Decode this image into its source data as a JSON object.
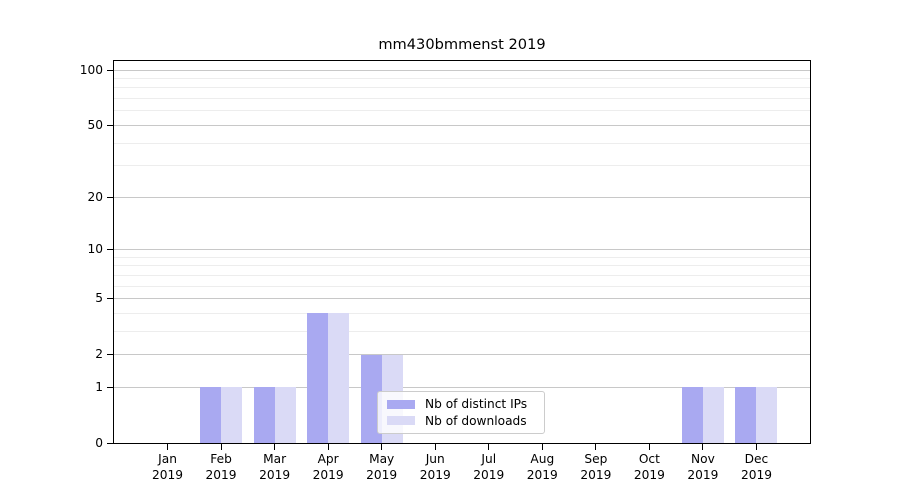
{
  "title": "mm430bmmenst 2019",
  "chart_data": {
    "type": "bar",
    "title": "mm430bmmenst 2019",
    "categories": [
      "Jan",
      "Feb",
      "Mar",
      "Apr",
      "May",
      "Jun",
      "Jul",
      "Aug",
      "Sep",
      "Oct",
      "Nov",
      "Dec"
    ],
    "x_tick_year": "2019",
    "series": [
      {
        "name": "Nb of distinct IPs",
        "color": "#a9a9f1",
        "values": [
          0,
          1,
          1,
          4,
          2,
          0,
          0,
          0,
          0,
          0,
          1,
          1
        ]
      },
      {
        "name": "Nb of downloads",
        "color": "#dadaf6",
        "values": [
          0,
          1,
          1,
          4,
          2,
          0,
          0,
          0,
          0,
          0,
          1,
          1
        ]
      }
    ],
    "yscale": "log1p",
    "ylim": [
      0,
      112
    ],
    "yticks": [
      0,
      1,
      2,
      5,
      10,
      20,
      50,
      100
    ],
    "yticks_minor": [
      3,
      4,
      6,
      7,
      8,
      9,
      30,
      40,
      60,
      70,
      80,
      90
    ],
    "grid": "horizontal",
    "legend_position": "lower-center",
    "colors": {
      "grid_major": "#c8c8c8",
      "grid_minor": "#ededed",
      "spine": "#000000",
      "text": "#000000"
    }
  }
}
